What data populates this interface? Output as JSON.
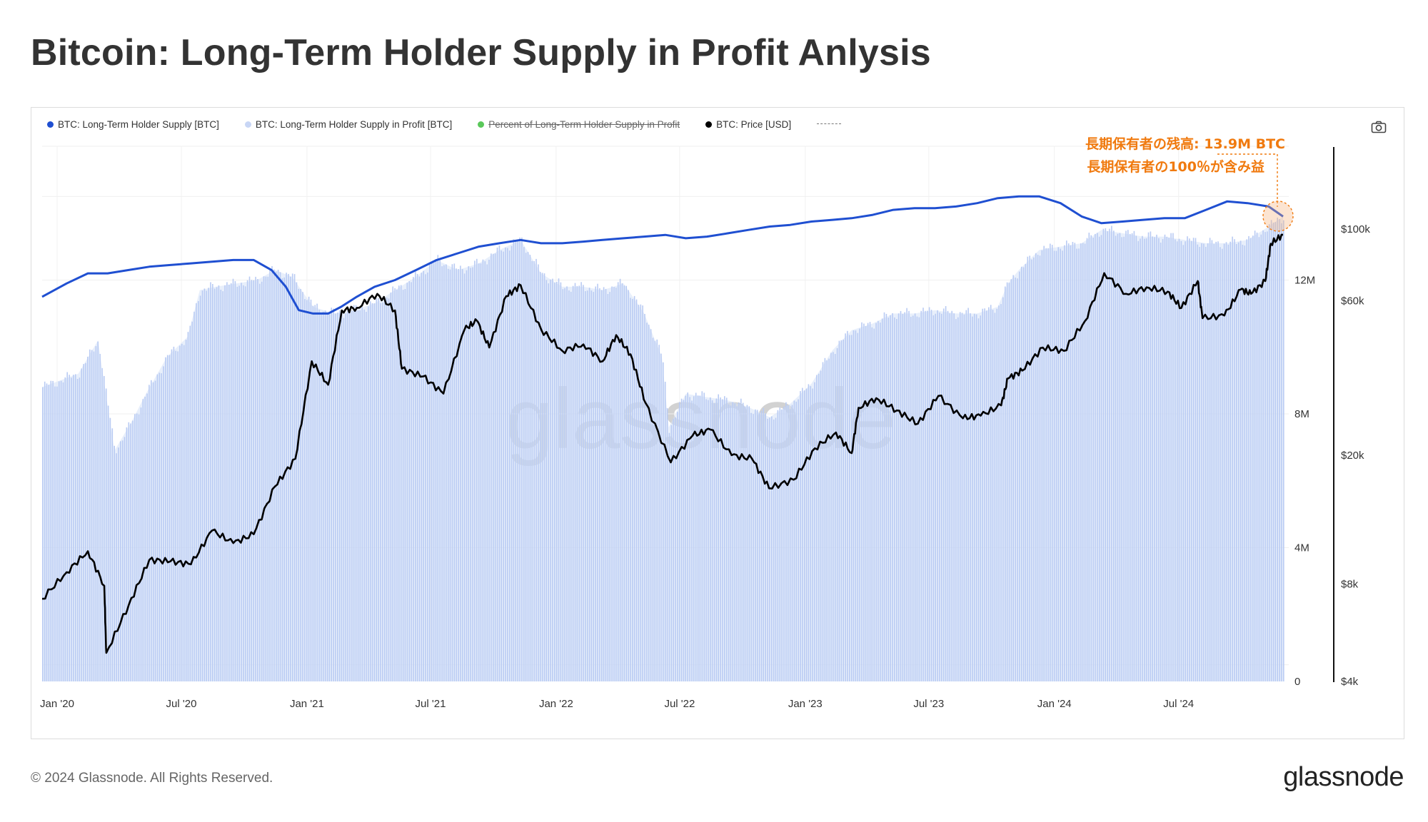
{
  "title": "Bitcoin: Long-Term Holder Supply in Profit Anlysis",
  "footer": {
    "copyright": "© 2024 Glassnode. All Rights Reserved.",
    "brand": "glassnode"
  },
  "watermark": "glassnode",
  "legend": [
    {
      "label": "BTC: Long-Term Holder Supply [BTC]",
      "color": "#1f4fd1",
      "enabled": true
    },
    {
      "label": "BTC: Long-Term Holder Supply in Profit [BTC]",
      "color": "#c8d6f5",
      "enabled": true
    },
    {
      "label": "Percent of Long-Term Holder Supply in Profit",
      "color": "#5ac85a",
      "enabled": false
    },
    {
      "label": "BTC: Price [USD]",
      "color": "#000000",
      "enabled": true
    }
  ],
  "annotation": {
    "line1": "長期保有者の残高: 13.9M BTC",
    "line2": "長期保有者の100％が含み益",
    "color": "#f07a0f"
  },
  "chart_data": {
    "type": "line",
    "x_ticks": [
      "Jan '20",
      "Jul '20",
      "Jan '21",
      "Jul '21",
      "Jan '22",
      "Jul '22",
      "Jan '23",
      "Jul '23",
      "Jan '24",
      "Jul '24"
    ],
    "y_left": {
      "ticks": [
        "0",
        "4M",
        "8M",
        "12M"
      ],
      "range": [
        0,
        16000000
      ]
    },
    "y_right": {
      "ticks": [
        "$4k",
        "$8k",
        "$20k",
        "$60k",
        "$100k"
      ],
      "scale": "log",
      "range": [
        4000,
        180000
      ]
    },
    "grid": true,
    "series": [
      {
        "name": "BTC: Long-Term Holder Supply [BTC]",
        "axis": "left",
        "style": "line",
        "x": [
          "2019-12-10",
          "2020-01-15",
          "2020-02-15",
          "2020-03-15",
          "2020-04-15",
          "2020-05-15",
          "2020-06-15",
          "2020-07-15",
          "2020-08-15",
          "2020-09-15",
          "2020-10-15",
          "2020-11-10",
          "2020-12-01",
          "2020-12-20",
          "2021-01-10",
          "2021-02-01",
          "2021-02-20",
          "2021-03-15",
          "2021-04-10",
          "2021-05-10",
          "2021-06-10",
          "2021-07-10",
          "2021-08-10",
          "2021-09-10",
          "2021-10-10",
          "2021-11-10",
          "2021-12-10",
          "2022-01-10",
          "2022-02-10",
          "2022-03-10",
          "2022-04-10",
          "2022-05-10",
          "2022-06-10",
          "2022-07-10",
          "2022-08-10",
          "2022-09-10",
          "2022-10-10",
          "2022-11-10",
          "2022-12-10",
          "2023-01-10",
          "2023-02-10",
          "2023-03-10",
          "2023-04-10",
          "2023-05-10",
          "2023-06-10",
          "2023-07-10",
          "2023-08-10",
          "2023-09-10",
          "2023-10-10",
          "2023-11-10",
          "2023-12-10",
          "2024-01-10",
          "2024-02-10",
          "2024-03-10",
          "2024-04-10",
          "2024-05-10",
          "2024-06-10",
          "2024-07-10",
          "2024-08-10",
          "2024-09-10",
          "2024-10-10",
          "2024-11-10",
          "2024-12-01"
        ],
        "values": [
          11500000.0,
          11900000.0,
          12200000.0,
          12200000.0,
          12300000.0,
          12400000.0,
          12450000.0,
          12500000.0,
          12550000.0,
          12600000.0,
          12600000.0,
          12300000.0,
          11800000.0,
          11100000.0,
          11000000.0,
          11000000.0,
          11200000.0,
          11500000.0,
          11800000.0,
          12000000.0,
          12300000.0,
          12600000.0,
          12800000.0,
          13000000.0,
          13100000.0,
          13200000.0,
          13100000.0,
          13100000.0,
          13150000.0,
          13200000.0,
          13250000.0,
          13300000.0,
          13350000.0,
          13250000.0,
          13300000.0,
          13400000.0,
          13500000.0,
          13600000.0,
          13650000.0,
          13750000.0,
          13800000.0,
          13850000.0,
          13950000.0,
          14100000.0,
          14150000.0,
          14150000.0,
          14200000.0,
          14300000.0,
          14450000.0,
          14500000.0,
          14500000.0,
          14300000.0,
          13900000.0,
          13700000.0,
          13750000.0,
          13800000.0,
          13850000.0,
          13850000.0,
          14100000.0,
          14350000.0,
          14300000.0,
          14200000.0,
          13900000.0
        ]
      },
      {
        "name": "BTC: Long-Term Holder Supply in Profit [BTC]",
        "axis": "left",
        "style": "bar-area",
        "x": [
          "2019-12-10",
          "2020-02-01",
          "2020-03-01",
          "2020-03-13",
          "2020-03-25",
          "2020-04-20",
          "2020-05-10",
          "2020-06-10",
          "2020-07-10",
          "2020-07-28",
          "2020-08-20",
          "2020-09-20",
          "2020-10-20",
          "2020-11-15",
          "2020-12-10",
          "2021-01-10",
          "2021-02-10",
          "2021-03-10",
          "2021-04-10",
          "2021-05-10",
          "2021-06-10",
          "2021-07-10",
          "2021-08-10",
          "2021-09-10",
          "2021-10-10",
          "2021-11-10",
          "2021-12-10",
          "2022-01-10",
          "2022-02-10",
          "2022-03-10",
          "2022-04-10",
          "2022-05-10",
          "2022-06-05",
          "2022-06-15",
          "2022-07-10",
          "2022-08-10",
          "2022-09-10",
          "2022-10-10",
          "2022-11-10",
          "2022-12-10",
          "2023-01-10",
          "2023-02-10",
          "2023-03-10",
          "2023-04-10",
          "2023-05-10",
          "2023-06-10",
          "2023-07-10",
          "2023-08-10",
          "2023-09-10",
          "2023-10-10",
          "2023-10-25",
          "2023-11-10",
          "2023-12-10",
          "2024-01-10",
          "2024-02-10",
          "2024-03-10",
          "2024-04-10",
          "2024-05-10",
          "2024-06-10",
          "2024-07-10",
          "2024-08-10",
          "2024-09-10",
          "2024-10-10",
          "2024-11-10",
          "2024-12-01"
        ],
        "values": [
          8800000.0,
          9200000.0,
          10200000.0,
          8500000.0,
          6900000.0,
          7800000.0,
          8600000.0,
          9700000.0,
          10300000.0,
          11700000.0,
          11800000.0,
          11900000.0,
          12000000.0,
          12300000.0,
          12100000.0,
          11200000.0,
          11000000.0,
          11100000.0,
          11300000.0,
          11700000.0,
          12100000.0,
          12600000.0,
          12300000.0,
          12500000.0,
          12900000.0,
          13200000.0,
          12200000.0,
          11800000.0,
          11800000.0,
          11700000.0,
          11900000.0,
          11000000.0,
          9700000.0,
          7600000.0,
          8600000.0,
          8500000.0,
          8400000.0,
          8200000.0,
          7900000.0,
          8300000.0,
          8900000.0,
          9900000.0,
          10500000.0,
          10700000.0,
          11000000.0,
          11000000.0,
          11100000.0,
          11000000.0,
          11000000.0,
          11200000.0,
          11900000.0,
          12300000.0,
          12900000.0,
          13000000.0,
          13100000.0,
          13500000.0,
          13400000.0,
          13300000.0,
          13300000.0,
          13200000.0,
          13100000.0,
          13100000.0,
          13200000.0,
          13600000.0,
          13900000.0
        ]
      },
      {
        "name": "BTC: Price [USD]",
        "axis": "right",
        "style": "line",
        "x": [
          "2019-12-10",
          "2020-01-15",
          "2020-02-15",
          "2020-03-10",
          "2020-03-13",
          "2020-04-15",
          "2020-05-15",
          "2020-06-15",
          "2020-07-15",
          "2020-08-15",
          "2020-09-15",
          "2020-10-15",
          "2020-11-15",
          "2020-12-15",
          "2021-01-08",
          "2021-02-01",
          "2021-02-21",
          "2021-03-15",
          "2021-04-14",
          "2021-05-10",
          "2021-05-20",
          "2021-06-20",
          "2021-07-20",
          "2021-08-20",
          "2021-09-07",
          "2021-09-25",
          "2021-10-20",
          "2021-11-10",
          "2021-12-10",
          "2022-01-10",
          "2022-02-10",
          "2022-03-10",
          "2022-03-30",
          "2022-04-20",
          "2022-05-12",
          "2022-06-18",
          "2022-07-20",
          "2022-08-15",
          "2022-09-15",
          "2022-10-15",
          "2022-11-09",
          "2022-12-15",
          "2023-01-15",
          "2023-02-15",
          "2023-03-10",
          "2023-03-20",
          "2023-04-15",
          "2023-05-15",
          "2023-06-15",
          "2023-07-15",
          "2023-08-20",
          "2023-09-15",
          "2023-10-15",
          "2023-10-25",
          "2023-11-15",
          "2023-12-15",
          "2024-01-15",
          "2024-02-15",
          "2024-03-14",
          "2024-04-15",
          "2024-05-15",
          "2024-06-15",
          "2024-07-05",
          "2024-07-29",
          "2024-08-05",
          "2024-09-06",
          "2024-09-30",
          "2024-10-15",
          "2024-11-05",
          "2024-11-13",
          "2024-12-01"
        ],
        "values": [
          7200,
          8700,
          10100,
          7900,
          4900,
          6900,
          9500,
          9400,
          9200,
          11700,
          10700,
          11400,
          16000,
          19500,
          39000,
          33000,
          56000,
          57000,
          63000,
          56000,
          37000,
          35000,
          31000,
          49000,
          52000,
          43000,
          62000,
          67000,
          49000,
          42000,
          44000,
          39000,
          47000,
          41000,
          29000,
          19000,
          23000,
          24000,
          20000,
          19500,
          15800,
          16800,
          21000,
          23500,
          20300,
          28000,
          30000,
          27500,
          25000,
          30500,
          26000,
          26500,
          28500,
          34500,
          36500,
          43000,
          42000,
          52000,
          73000,
          63000,
          66000,
          64000,
          57000,
          69000,
          53000,
          54000,
          65000,
          63000,
          69000,
          90000,
          96000
        ]
      }
    ]
  }
}
